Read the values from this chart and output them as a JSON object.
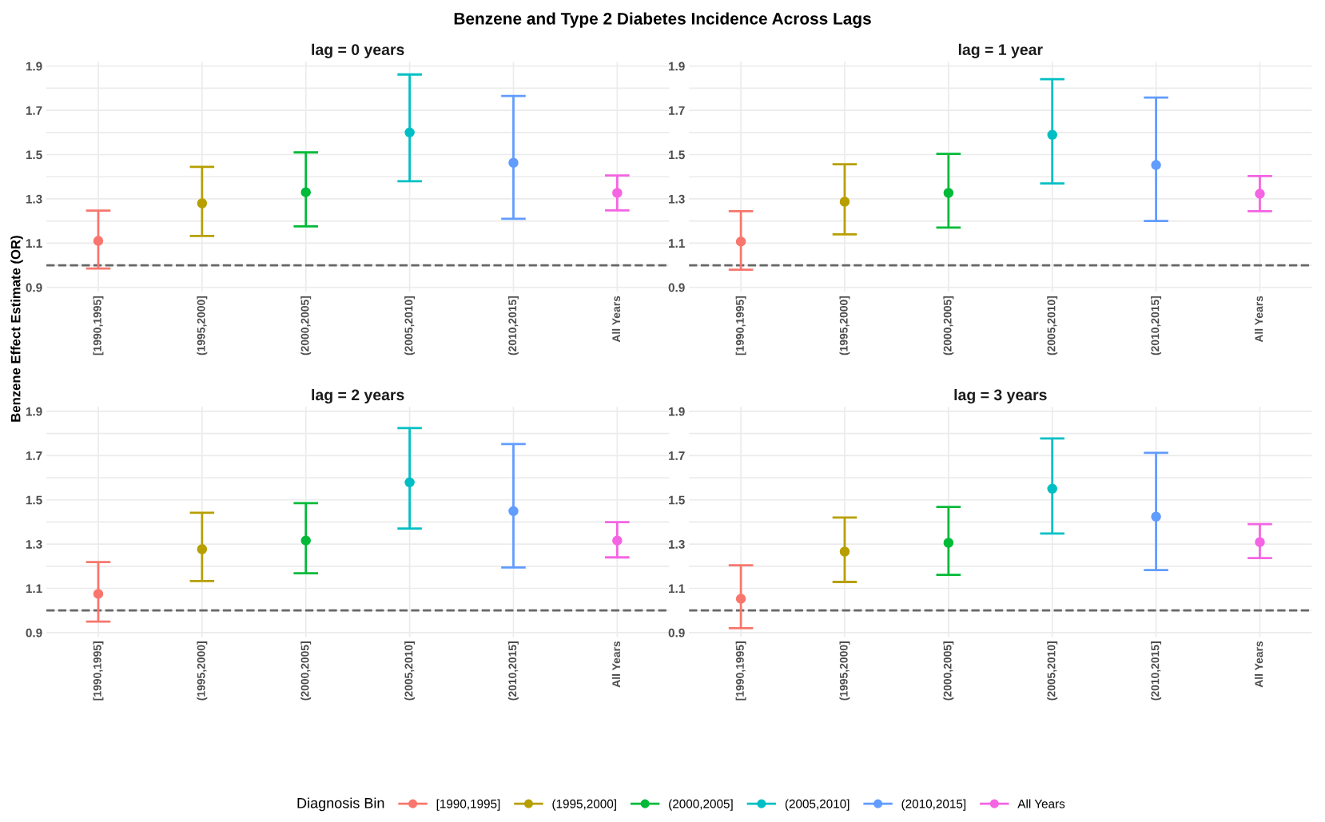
{
  "chart_data": [
    {
      "type": "scatter",
      "title": "Benzene and Type 2 Diabetes Incidence Across Lags",
      "subtitle": "lag = 0 years",
      "ylabel": "Benzene Effect Estimate (OR)",
      "legend": "bottom",
      "legend_title": "Diagnosis Bin",
      "grid": true,
      "marker": "circle",
      "categories": [
        "[1990,1995]",
        "(1995,2000]",
        "(2000,2005]",
        "(2005,2010]",
        "(2010,2015]",
        "All Years"
      ],
      "ylim": [
        0.88,
        1.92
      ],
      "yticks": [
        {
          "value": 0.9,
          "label": "0.9"
        },
        {
          "value": 1.0,
          "label": null
        },
        {
          "value": 1.1,
          "label": "1.1"
        },
        {
          "value": 1.2,
          "label": null
        },
        {
          "value": 1.3,
          "label": "1.3"
        },
        {
          "value": 1.4,
          "label": null
        },
        {
          "value": 1.5,
          "label": "1.5"
        },
        {
          "value": 1.6,
          "label": null
        },
        {
          "value": 1.7,
          "label": "1.7"
        },
        {
          "value": 1.8,
          "label": null
        },
        {
          "value": 1.9,
          "label": "1.9"
        }
      ],
      "ref_lines": [
        {
          "axis": "y",
          "value": 1.0,
          "color": "#666666",
          "line_style": "dashed"
        }
      ],
      "series": [
        {
          "name": "[1990,1995]",
          "color": "#F8766D",
          "values": [
            1.11,
            null,
            null,
            null,
            null,
            null
          ],
          "errors": [
            [
              0.985,
              1.247
            ],
            null,
            null,
            null,
            null,
            null
          ]
        },
        {
          "name": "(1995,2000]",
          "color": "#B79F00",
          "values": [
            null,
            1.28,
            null,
            null,
            null,
            null
          ],
          "errors": [
            null,
            [
              1.132,
              1.445
            ],
            null,
            null,
            null,
            null
          ]
        },
        {
          "name": "(2000,2005]",
          "color": "#00BA38",
          "values": [
            null,
            null,
            1.33,
            null,
            null,
            null
          ],
          "errors": [
            null,
            null,
            [
              1.176,
              1.51
            ],
            null,
            null,
            null
          ]
        },
        {
          "name": "(2005,2010]",
          "color": "#00BFC4",
          "values": [
            null,
            null,
            null,
            1.6,
            null,
            null
          ],
          "errors": [
            null,
            null,
            null,
            [
              1.38,
              1.862
            ],
            null,
            null
          ]
        },
        {
          "name": "(2010,2015]",
          "color": "#619CFF",
          "values": [
            null,
            null,
            null,
            null,
            1.463,
            null
          ],
          "errors": [
            null,
            null,
            null,
            null,
            [
              1.21,
              1.765
            ],
            null
          ]
        },
        {
          "name": "All Years",
          "color": "#F564E3",
          "values": [
            null,
            null,
            null,
            null,
            null,
            1.327
          ],
          "errors": [
            null,
            null,
            null,
            null,
            null,
            [
              1.248,
              1.406
            ]
          ]
        }
      ]
    },
    {
      "type": "scatter",
      "subtitle": "lag = 1 year",
      "grid": true,
      "marker": "circle",
      "categories": [
        "[1990,1995]",
        "(1995,2000]",
        "(2000,2005]",
        "(2005,2010]",
        "(2010,2015]",
        "All Years"
      ],
      "ylim": [
        0.88,
        1.92
      ],
      "yticks": [
        {
          "value": 0.9,
          "label": "0.9"
        },
        {
          "value": 1.0,
          "label": null
        },
        {
          "value": 1.1,
          "label": "1.1"
        },
        {
          "value": 1.2,
          "label": null
        },
        {
          "value": 1.3,
          "label": "1.3"
        },
        {
          "value": 1.4,
          "label": null
        },
        {
          "value": 1.5,
          "label": "1.5"
        },
        {
          "value": 1.6,
          "label": null
        },
        {
          "value": 1.7,
          "label": "1.7"
        },
        {
          "value": 1.8,
          "label": null
        },
        {
          "value": 1.9,
          "label": "1.9"
        }
      ],
      "ref_lines": [
        {
          "axis": "y",
          "value": 1.0,
          "color": "#666666",
          "line_style": "dashed"
        }
      ],
      "series": [
        {
          "color": "#F8766D",
          "values": [
            1.107,
            null,
            null,
            null,
            null,
            null
          ],
          "errors": [
            [
              0.98,
              1.244
            ],
            null,
            null,
            null,
            null,
            null
          ]
        },
        {
          "color": "#B79F00",
          "values": [
            null,
            1.287,
            null,
            null,
            null,
            null
          ],
          "errors": [
            null,
            [
              1.14,
              1.456
            ],
            null,
            null,
            null,
            null
          ]
        },
        {
          "color": "#00BA38",
          "values": [
            null,
            null,
            1.327,
            null,
            null,
            null
          ],
          "errors": [
            null,
            null,
            [
              1.17,
              1.503
            ],
            null,
            null,
            null
          ]
        },
        {
          "color": "#00BFC4",
          "values": [
            null,
            null,
            null,
            1.589,
            null,
            null
          ],
          "errors": [
            null,
            null,
            null,
            [
              1.37,
              1.841
            ],
            null,
            null
          ]
        },
        {
          "color": "#619CFF",
          "values": [
            null,
            null,
            null,
            null,
            1.453,
            null
          ],
          "errors": [
            null,
            null,
            null,
            null,
            [
              1.2,
              1.758
            ],
            null
          ]
        },
        {
          "color": "#F564E3",
          "values": [
            null,
            null,
            null,
            null,
            null,
            1.323
          ],
          "errors": [
            null,
            null,
            null,
            null,
            null,
            [
              1.244,
              1.403
            ]
          ]
        }
      ]
    },
    {
      "type": "scatter",
      "subtitle": "lag = 2 years",
      "grid": true,
      "marker": "circle",
      "categories": [
        "[1990,1995]",
        "(1995,2000]",
        "(2000,2005]",
        "(2005,2010]",
        "(2010,2015]",
        "All Years"
      ],
      "ylim": [
        0.88,
        1.92
      ],
      "yticks": [
        {
          "value": 0.9,
          "label": "0.9"
        },
        {
          "value": 1.0,
          "label": null
        },
        {
          "value": 1.1,
          "label": "1.1"
        },
        {
          "value": 1.2,
          "label": null
        },
        {
          "value": 1.3,
          "label": "1.3"
        },
        {
          "value": 1.4,
          "label": null
        },
        {
          "value": 1.5,
          "label": "1.5"
        },
        {
          "value": 1.6,
          "label": null
        },
        {
          "value": 1.7,
          "label": "1.7"
        },
        {
          "value": 1.8,
          "label": null
        },
        {
          "value": 1.9,
          "label": "1.9"
        }
      ],
      "ref_lines": [
        {
          "axis": "y",
          "value": 1.0,
          "color": "#666666",
          "line_style": "dashed"
        }
      ],
      "series": [
        {
          "color": "#F8766D",
          "values": [
            1.075,
            null,
            null,
            null,
            null,
            null
          ],
          "errors": [
            [
              0.95,
              1.219
            ],
            null,
            null,
            null,
            null,
            null
          ]
        },
        {
          "color": "#B79F00",
          "values": [
            null,
            1.277,
            null,
            null,
            null,
            null
          ],
          "errors": [
            null,
            [
              1.133,
              1.442
            ],
            null,
            null,
            null,
            null
          ]
        },
        {
          "color": "#00BA38",
          "values": [
            null,
            null,
            1.316,
            null,
            null,
            null
          ],
          "errors": [
            null,
            null,
            [
              1.168,
              1.485
            ],
            null,
            null,
            null
          ]
        },
        {
          "color": "#00BFC4",
          "values": [
            null,
            null,
            null,
            1.579,
            null,
            null
          ],
          "errors": [
            null,
            null,
            null,
            [
              1.37,
              1.824
            ],
            null,
            null
          ]
        },
        {
          "color": "#619CFF",
          "values": [
            null,
            null,
            null,
            null,
            1.449,
            null
          ],
          "errors": [
            null,
            null,
            null,
            null,
            [
              1.194,
              1.752
            ],
            null
          ]
        },
        {
          "color": "#F564E3",
          "values": [
            null,
            null,
            null,
            null,
            null,
            1.316
          ],
          "errors": [
            null,
            null,
            null,
            null,
            null,
            [
              1.24,
              1.399
            ]
          ]
        }
      ]
    },
    {
      "type": "scatter",
      "subtitle": "lag = 3 years",
      "grid": true,
      "marker": "circle",
      "categories": [
        "[1990,1995]",
        "(1995,2000]",
        "(2000,2005]",
        "(2005,2010]",
        "(2010,2015]",
        "All Years"
      ],
      "ylim": [
        0.88,
        1.92
      ],
      "yticks": [
        {
          "value": 0.9,
          "label": "0.9"
        },
        {
          "value": 1.0,
          "label": null
        },
        {
          "value": 1.1,
          "label": "1.1"
        },
        {
          "value": 1.2,
          "label": null
        },
        {
          "value": 1.3,
          "label": "1.3"
        },
        {
          "value": 1.4,
          "label": null
        },
        {
          "value": 1.5,
          "label": "1.5"
        },
        {
          "value": 1.6,
          "label": null
        },
        {
          "value": 1.7,
          "label": "1.7"
        },
        {
          "value": 1.8,
          "label": null
        },
        {
          "value": 1.9,
          "label": "1.9"
        }
      ],
      "ref_lines": [
        {
          "axis": "y",
          "value": 1.0,
          "color": "#666666",
          "line_style": "dashed"
        }
      ],
      "series": [
        {
          "color": "#F8766D",
          "values": [
            1.053,
            null,
            null,
            null,
            null,
            null
          ],
          "errors": [
            [
              0.92,
              1.204
            ],
            null,
            null,
            null,
            null,
            null
          ]
        },
        {
          "color": "#B79F00",
          "values": [
            null,
            1.266,
            null,
            null,
            null,
            null
          ],
          "errors": [
            null,
            [
              1.129,
              1.42
            ],
            null,
            null,
            null,
            null
          ]
        },
        {
          "color": "#00BA38",
          "values": [
            null,
            null,
            1.306,
            null,
            null,
            null
          ],
          "errors": [
            null,
            null,
            [
              1.161,
              1.468
            ],
            null,
            null,
            null
          ]
        },
        {
          "color": "#00BFC4",
          "values": [
            null,
            null,
            null,
            1.55,
            null,
            null
          ],
          "errors": [
            null,
            null,
            null,
            [
              1.348,
              1.777
            ],
            null,
            null
          ]
        },
        {
          "color": "#619CFF",
          "values": [
            null,
            null,
            null,
            null,
            1.424,
            null
          ],
          "errors": [
            null,
            null,
            null,
            null,
            [
              1.183,
              1.712
            ],
            null
          ]
        },
        {
          "color": "#F564E3",
          "values": [
            null,
            null,
            null,
            null,
            null,
            1.309
          ],
          "errors": [
            null,
            null,
            null,
            null,
            null,
            [
              1.237,
              1.39
            ]
          ]
        }
      ]
    }
  ]
}
